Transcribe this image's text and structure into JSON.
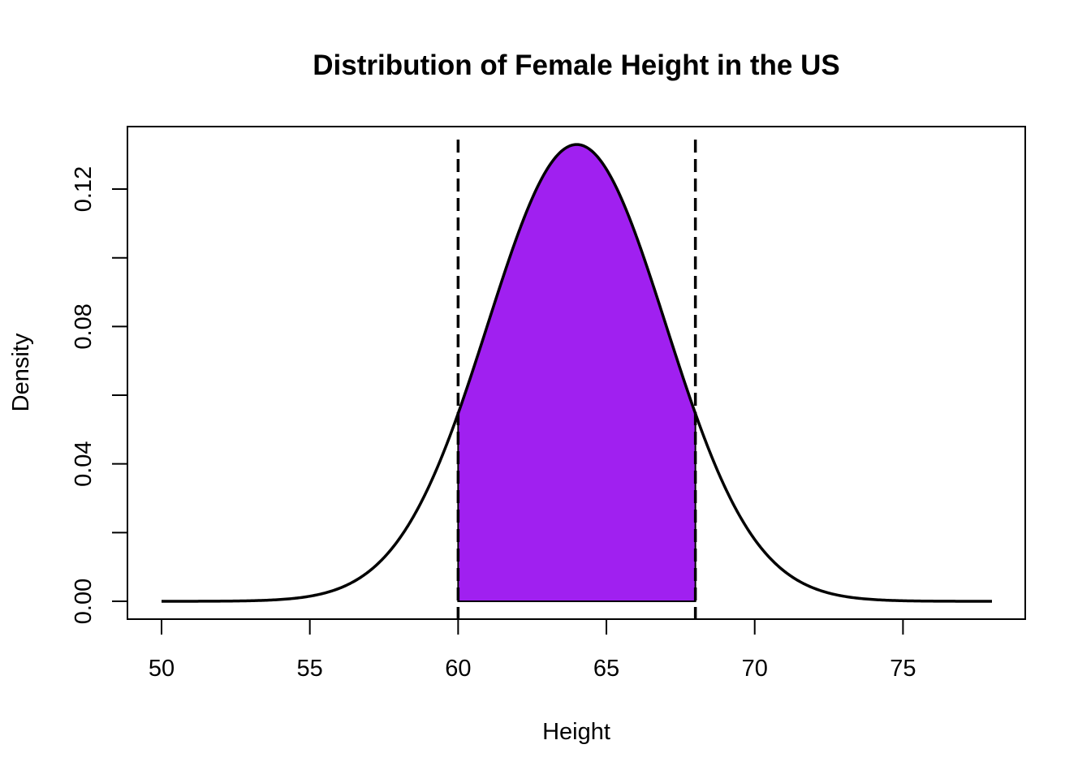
{
  "chart_data": {
    "type": "area",
    "title": "Distribution of Female Height in the US",
    "xlabel": "Height",
    "ylabel": "Density",
    "xlim": [
      50,
      78
    ],
    "ylim": [
      0,
      0.133
    ],
    "x_ticks": [
      50,
      55,
      60,
      65,
      70,
      75
    ],
    "x_tick_labels": [
      "50",
      "55",
      "60",
      "65",
      "70",
      "75"
    ],
    "y_ticks": [
      0,
      0.02,
      0.04,
      0.06,
      0.08,
      0.1,
      0.12
    ],
    "y_tick_labels": [
      "0.00",
      "",
      "0.04",
      "",
      "0.08",
      "",
      "0.12"
    ],
    "grid": false,
    "distribution": {
      "family": "normal",
      "mean": 64,
      "sd": 3,
      "x_range": [
        50,
        78
      ],
      "peak_density": 0.133
    },
    "shaded_region": {
      "from": 60,
      "to": 68,
      "color": "#a020f0"
    },
    "reference_lines": [
      {
        "x": 60,
        "style": "dashed"
      },
      {
        "x": 68,
        "style": "dashed"
      }
    ],
    "curve_color": "#000000"
  }
}
